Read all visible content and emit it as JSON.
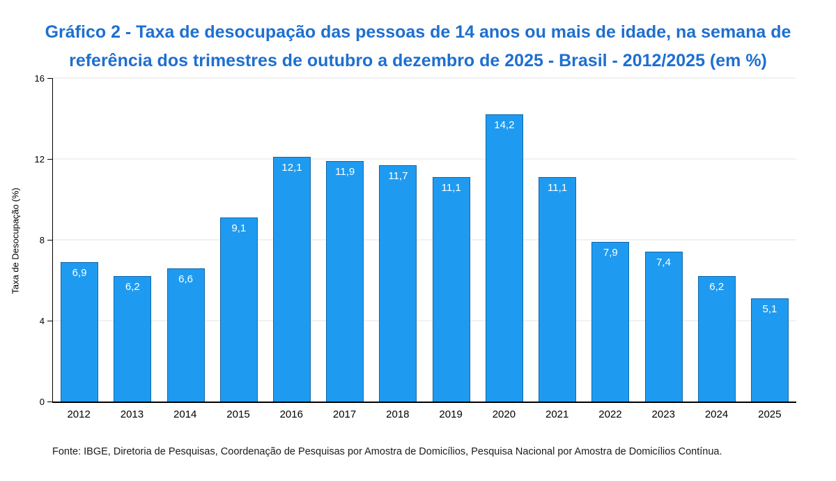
{
  "title": "Gráfico 2 - Taxa de desocupação das pessoas de 14 anos ou mais de idade, na semana de referência dos trimestres de outubro a dezembro de 2025 - Brasil - 2012/2025 (em %)",
  "source": "Fonte: IBGE, Diretoria de Pesquisas, Coordenação de Pesquisas por Amostra de Domicílios, Pesquisa Nacional por Amostra de Domicílios Contínua.",
  "colors": {
    "bar_fill": "#1E9BF0",
    "bar_border": "#1266A8",
    "title_text": "#1E6FD0",
    "axis": "#000000",
    "gridline": "#E3E3E3",
    "value_label": "#FFFFFF"
  },
  "chart_data": {
    "type": "bar",
    "title": "Gráfico 2 - Taxa de desocupação das pessoas de 14 anos ou mais de idade, na semana de referência dos trimestres de outubro a dezembro de 2025 - Brasil - 2012/2025 (em %)",
    "categories": [
      "2012",
      "2013",
      "2014",
      "2015",
      "2016",
      "2017",
      "2018",
      "2019",
      "2020",
      "2021",
      "2022",
      "2023",
      "2024",
      "2025"
    ],
    "values": [
      6.9,
      6.2,
      6.6,
      9.1,
      12.1,
      11.9,
      11.7,
      11.1,
      14.2,
      11.1,
      7.9,
      7.4,
      6.2,
      5.1
    ],
    "value_labels": [
      "6,9",
      "6,2",
      "6,6",
      "9,1",
      "12,1",
      "11,9",
      "11,7",
      "11,1",
      "14,2",
      "11,1",
      "7,9",
      "7,4",
      "6,2",
      "5,1"
    ],
    "xlabel": "",
    "ylabel": "Taxa de Desocupação (%)",
    "ylim": [
      0,
      16
    ],
    "yticks": [
      0,
      4,
      8,
      12,
      16
    ],
    "grid": "horizontal",
    "legend": "none"
  }
}
